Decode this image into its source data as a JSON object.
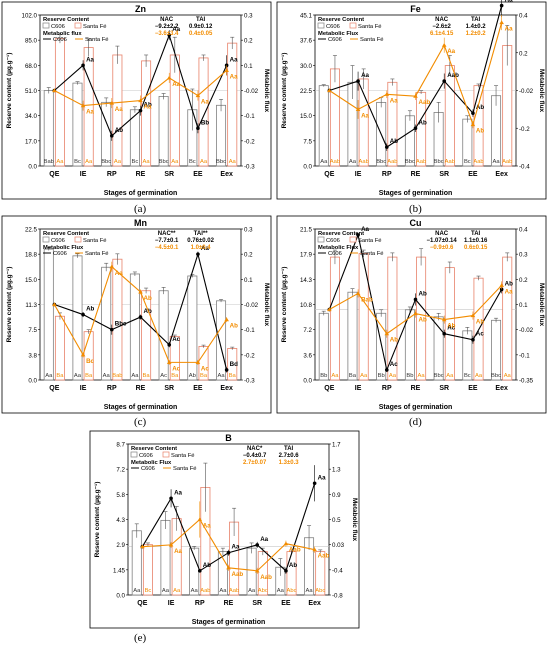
{
  "colors": {
    "c606": "#000000",
    "santa": "#F28C00",
    "bar_c606_edge": "#808080",
    "bar_santa_edge": "#E8826A"
  },
  "chart_data": [
    {
      "type": "bar",
      "panel_label": "(a)",
      "title": "Zn",
      "xlabel": "Stages of germination",
      "ylabel": "Reserve content (µg.g⁻¹)",
      "y2label": "Metabolic flux",
      "categories": [
        "QE",
        "IE",
        "RP",
        "RE",
        "SR",
        "EE",
        "Eex"
      ],
      "ylim": [
        0,
        102
      ],
      "yticks": [
        "0.0",
        "17.0",
        "34.0",
        "51.0",
        "68.0",
        "85.0",
        "102.0"
      ],
      "y2lim": [
        -0.3,
        0.3
      ],
      "y2ticks": [
        "-0.3",
        "-0.2",
        "-0.1",
        "-0.02",
        "0.1",
        "0.2",
        "0.3"
      ],
      "legend": {
        "reserve": "Reserve Content",
        "flux": "Metabolic flux",
        "c606": "C606",
        "santa": "Santa Fé"
      },
      "nac": {
        "label": "NAC",
        "c606": "−9.2±2.2",
        "santa": "−3.6±3.4"
      },
      "tai": {
        "label": "TAI",
        "c606": "0.9±0.12",
        "santa": "0.4±0.05"
      },
      "series": [
        {
          "name": "C606",
          "kind": "bar",
          "values": [
            51,
            56,
            43,
            38,
            47,
            38,
            41
          ],
          "err": [
            2,
            1,
            3,
            2,
            2,
            14,
            4
          ],
          "labels": [
            "Bab",
            "Bc",
            "Bbc",
            "Bc",
            "Bbc",
            "Bc",
            "Bbc"
          ]
        },
        {
          "name": "Santa Fé",
          "kind": "bar",
          "values": [
            86,
            80,
            75,
            71,
            75,
            73,
            83
          ],
          "err": [
            3,
            6,
            6,
            4,
            12,
            2,
            4
          ],
          "labels": [
            "Aa",
            "Aa",
            "Aa",
            "Aa",
            "Aa",
            "Aa",
            "Aa"
          ]
        },
        {
          "name": "C606",
          "kind": "flux",
          "values": [
            0,
            0.1,
            -0.18,
            -0.08,
            0.22,
            -0.15,
            0.1
          ],
          "err": [
            0,
            0.02,
            0.02,
            0.02,
            0.02,
            0.02,
            0.04
          ],
          "labels": [
            "",
            "Aa",
            "Ab",
            "Ab",
            "Aa",
            "Bb",
            "Aa"
          ]
        },
        {
          "name": "Santa Fé",
          "kind": "flux",
          "values": [
            0,
            -0.06,
            -0.05,
            -0.04,
            0.05,
            -0.02,
            0.08
          ],
          "err": [
            0,
            0.02,
            0.02,
            0.02,
            0.02,
            0.02,
            0.02
          ],
          "labels": [
            "",
            "Aa",
            "Aa",
            "Aa",
            "Aa",
            "Aa",
            "Aa"
          ]
        }
      ]
    },
    {
      "type": "bar",
      "panel_label": "(b)",
      "title": "Fe",
      "xlabel": "Stages of germination",
      "ylabel": "Reserve content (µg.g⁻¹)",
      "y2label": "Metabolic flux",
      "categories": [
        "QE",
        "IE",
        "RP",
        "RE",
        "SR",
        "EE",
        "Eex"
      ],
      "ylim": [
        0,
        45.1
      ],
      "yticks": [
        "0.0",
        "7.5",
        "15.0",
        "22.5",
        "30.0",
        "37.6",
        "45.1"
      ],
      "y2lim": [
        -0.4,
        0.4
      ],
      "y2ticks": [
        "-0.4",
        "-0.2",
        "-0.02",
        "0.2",
        "0.4"
      ],
      "legend": {
        "reserve": "Reserve Content",
        "flux": "Metabolic Flux",
        "c606": "C606",
        "santa": "Santa Fé"
      },
      "nac": {
        "label": "NAC",
        "c606": "−2.6±2",
        "santa": "6.1±4.15"
      },
      "tai": {
        "label": "TAI",
        "c606": "1.4±0.2",
        "santa": "1.2±0.2"
      },
      "series": [
        {
          "name": "C606",
          "kind": "bar",
          "values": [
            24,
            25,
            19,
            15,
            16,
            14,
            21
          ],
          "err": [
            0.3,
            5,
            1.5,
            1.5,
            3,
            1,
            3
          ],
          "labels": [
            "Aa",
            "Aa",
            "Bbc",
            "Bbc",
            "Bbc",
            "Bc",
            "Aa"
          ]
        },
        {
          "name": "Santa Fé",
          "kind": "bar",
          "values": [
            29,
            26,
            25,
            22,
            30,
            24,
            36
          ],
          "err": [
            4,
            3,
            1,
            0.5,
            3,
            0.5,
            6
          ],
          "labels": [
            "Aab",
            "Aab",
            "Aab",
            "Aab",
            "Aab",
            "Aab",
            "Aab"
          ]
        },
        {
          "name": "C606",
          "kind": "flux",
          "values": [
            0,
            0.05,
            -0.3,
            -0.2,
            0.05,
            -0.12,
            0.45
          ],
          "err": [
            0,
            0.05,
            0.02,
            0.02,
            0.04,
            0.02,
            0.06
          ],
          "labels": [
            "",
            "Aa",
            "Ab",
            "Ab",
            "Aab",
            "Ab",
            "Aa"
          ]
        },
        {
          "name": "Santa Fé",
          "kind": "flux",
          "values": [
            0,
            -0.1,
            -0.02,
            -0.03,
            0.24,
            -0.18,
            0.36
          ],
          "err": [
            0,
            0.05,
            0.02,
            0.02,
            0.04,
            0.02,
            0.04
          ],
          "labels": [
            "",
            "Aa",
            "Aa",
            "Aab",
            "Aa",
            "Ab",
            "Aa"
          ]
        }
      ]
    },
    {
      "type": "bar",
      "panel_label": "(c)",
      "title": "Mn",
      "xlabel": "Stages of germination",
      "ylabel": "Reserve content (µg.g⁻¹)",
      "y2label": "Metabolic flux",
      "categories": [
        "QE",
        "IE",
        "RP",
        "RE",
        "SR",
        "EE",
        "Eex"
      ],
      "ylim": [
        0,
        22.5
      ],
      "yticks": [
        "0.0",
        "3.8",
        "7.5",
        "11.3",
        "15.0",
        "18.8",
        "22.5"
      ],
      "y2lim": [
        -0.3,
        0.3
      ],
      "y2ticks": [
        "-0.3",
        "-0.2",
        "-0.1",
        "-0.02",
        "0.1",
        "0.2",
        "0.3"
      ],
      "legend": {
        "reserve": "Reserve Content",
        "flux": "Metabolic Flux",
        "c606": "C606",
        "santa": "Santa Fé"
      },
      "nac": {
        "label": "NAC**",
        "c606": "−7.7±0.1",
        "santa": "−4.5±0.1"
      },
      "tai": {
        "label": "TAI**",
        "c606": "0.76±0.02",
        "santa": "1.0±0.4"
      },
      "series": [
        {
          "name": "C606",
          "kind": "bar",
          "values": [
            19.5,
            18.5,
            16.8,
            15.8,
            13.3,
            15.5,
            11.8
          ],
          "err": [
            0.2,
            0.3,
            0.6,
            0.3,
            0.5,
            0.2,
            0.2
          ],
          "labels": [
            "Aa",
            "Aa",
            "Aa",
            "Aa",
            "Ac",
            "Ab",
            "Aa"
          ]
        },
        {
          "name": "Santa Fé",
          "kind": "bar",
          "values": [
            9.5,
            7.2,
            18.0,
            13.3,
            6.5,
            5.0,
            4.7
          ],
          "err": [
            0.5,
            0.3,
            0.8,
            0.4,
            0.2,
            0.2,
            0.2
          ],
          "labels": [
            "Ba",
            "Ba",
            "Bab",
            "Ba",
            "Ba",
            "Ba",
            "Ba"
          ]
        },
        {
          "name": "C606",
          "kind": "flux",
          "values": [
            0,
            -0.04,
            -0.1,
            -0.05,
            -0.16,
            0.2,
            -0.26
          ],
          "err": [
            0,
            0.01,
            0.02,
            0.01,
            0.01,
            0.01,
            0.01
          ],
          "labels": [
            "",
            "Ab",
            "Bbc",
            "Ab",
            "Ac",
            "Aa",
            "Bd"
          ]
        },
        {
          "name": "Santa Fé",
          "kind": "flux",
          "values": [
            0,
            -0.2,
            0.15,
            0.05,
            -0.23,
            -0.23,
            -0.06
          ],
          "err": [
            0,
            0.01,
            0.02,
            0.01,
            0.01,
            0.01,
            0.01
          ],
          "labels": [
            "",
            "Bc",
            "Aa",
            "Ab",
            "Ac",
            "Ac",
            "Ab"
          ]
        }
      ]
    },
    {
      "type": "bar",
      "panel_label": "(d)",
      "title": "Cu",
      "xlabel": "Stages of germination",
      "ylabel": "Reserve content (µg.g⁻¹)",
      "y2label": "Metabolic flux",
      "categories": [
        "QE",
        "IE",
        "RP",
        "RE",
        "SR",
        "EE",
        "Eex"
      ],
      "ylim": [
        0,
        21.5
      ],
      "yticks": [
        "0.0",
        "3.6",
        "7.2",
        "10.8",
        "14.3",
        "17.9",
        "21.5"
      ],
      "y2lim": [
        -0.35,
        0.4
      ],
      "y2ticks": [
        "-0.35",
        "-0.1",
        "-0.02",
        "0.1",
        "0.2",
        "0.3",
        "0.4"
      ],
      "legend": {
        "reserve": "Reserve Content",
        "flux": "Metabolic Flux",
        "c606": "C606",
        "santa": "Santa Fé"
      },
      "nac": {
        "label": "NAC",
        "c606": "−1.07±0.14",
        "santa": "−0.9±0.6"
      },
      "tai": {
        "label": "TAI",
        "c606": "1.1±0.16",
        "santa": "0.6±0.15"
      },
      "series": [
        {
          "name": "C606",
          "kind": "bar",
          "values": [
            9.5,
            12.5,
            9.5,
            10.0,
            9.0,
            7.0,
            8.5
          ],
          "err": [
            0.3,
            0.5,
            0.5,
            0.4,
            0.5,
            0.5,
            0.3
          ],
          "labels": [
            "Bb",
            "Ba",
            "Bb",
            "Bb",
            "Bbc",
            "Bc",
            "Bbc"
          ]
        },
        {
          "name": "Santa Fé",
          "kind": "bar",
          "values": [
            17.5,
            18.0,
            17.5,
            17.5,
            16.0,
            14.5,
            17.5
          ],
          "err": [
            1,
            0.5,
            0.6,
            1.2,
            0.8,
            0.3,
            0.6
          ],
          "labels": [
            "Aa",
            "Aa",
            "Aa",
            "Aa",
            "Aa",
            "Aa",
            "Aa"
          ]
        },
        {
          "name": "C606",
          "kind": "flux",
          "values": [
            0,
            0.37,
            -0.3,
            0.05,
            -0.12,
            -0.15,
            0.1
          ],
          "err": [
            0,
            0.01,
            0.01,
            0.03,
            0.02,
            0.02,
            0.02
          ],
          "labels": [
            "",
            "Aa",
            "Ac",
            "Ab",
            "Ac",
            "Ac",
            "Ab"
          ]
        },
        {
          "name": "Santa Fé",
          "kind": "flux",
          "values": [
            0,
            0.08,
            -0.12,
            -0.02,
            -0.05,
            -0.03,
            0.12
          ],
          "err": [
            0,
            0.02,
            0.02,
            0.02,
            0.02,
            0.02,
            0.02
          ],
          "labels": [
            "",
            "Bab",
            "Ab",
            "Ab",
            "Ab",
            "Ab",
            "Aa"
          ]
        }
      ]
    },
    {
      "type": "bar",
      "panel_label": "(e)",
      "title": "B",
      "xlabel": "Stages of germination",
      "ylabel": "Reserve content (µg.g⁻¹)",
      "y2label": "Metabolic flux",
      "categories": [
        "QE",
        "IE",
        "RP",
        "RE",
        "SR",
        "EE",
        "Eex"
      ],
      "ylim": [
        0,
        8.7
      ],
      "yticks": [
        "0.0",
        "1.45",
        "2.9",
        "4.3",
        "5.8",
        "7.2",
        "8.7"
      ],
      "y2lim": [
        -0.8,
        1.7
      ],
      "y2ticks": [
        "-0.8",
        "-0.4",
        "0.03",
        "0.5",
        "0.9",
        "1.3",
        "1.7"
      ],
      "legend": {
        "reserve": "Reserve Content",
        "flux": "Metabolic Flux",
        "c606": "C606",
        "santa": "Santa Fé"
      },
      "nac": {
        "label": "NAC*",
        "c606": "−0.4±0.7",
        "santa": "2.7±0.07"
      },
      "tai": {
        "label": "TAI",
        "c606": "2.7±0.6",
        "santa": "1.3±0.3"
      },
      "series": [
        {
          "name": "C606",
          "kind": "bar",
          "values": [
            3.7,
            4.3,
            2.7,
            2.5,
            2.7,
            1.6,
            3.3
          ],
          "err": [
            0.4,
            0.5,
            0.1,
            0.2,
            0.3,
            0.5,
            0.7
          ],
          "labels": [
            "Aa",
            "Aa",
            "Aa",
            "Aa",
            "Aa",
            "Aa",
            "Aa"
          ]
        },
        {
          "name": "Santa Fé",
          "kind": "bar",
          "values": [
            2.9,
            4.4,
            6.2,
            4.2,
            2.5,
            2.5,
            2.5
          ],
          "err": [
            0.1,
            0.7,
            1.4,
            0.8,
            0.2,
            0.1,
            0.1
          ],
          "labels": [
            "Bc",
            "Aa",
            "Aab",
            "Aab",
            "Abc",
            "Abc",
            "Abc"
          ]
        },
        {
          "name": "C606",
          "kind": "flux",
          "values": [
            0,
            0.8,
            -0.4,
            -0.1,
            0.03,
            -0.4,
            1.05
          ],
          "err": [
            0,
            0.15,
            0.02,
            0.05,
            0.05,
            0.05,
            0.3
          ],
          "labels": [
            "",
            "Aa",
            "Ab",
            "Aa",
            "Aa",
            "Ab",
            "Aa"
          ]
        },
        {
          "name": "Santa Fé",
          "kind": "flux",
          "values": [
            0,
            0.03,
            0.45,
            -0.35,
            -0.4,
            0.05,
            -0.05
          ],
          "err": [
            0,
            0.05,
            0.3,
            0.05,
            0.05,
            0.05,
            0.05
          ],
          "labels": [
            "",
            "Aa",
            "Aa",
            "Aab",
            "Aab",
            "Aab",
            "Aab"
          ]
        }
      ]
    }
  ]
}
